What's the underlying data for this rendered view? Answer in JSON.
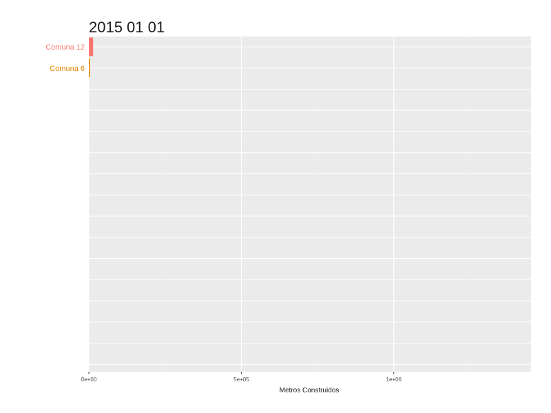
{
  "chart_data": {
    "type": "bar",
    "orientation": "horizontal",
    "title": "2015 01 01",
    "xlabel": "Metros Construidos",
    "ylabel": "",
    "xlim": [
      0,
      1450000
    ],
    "xticks": [
      0,
      500000,
      1000000
    ],
    "xtick_labels": [
      "0e+00",
      "5e+05",
      "1e+06"
    ],
    "categories": [
      "Comuna 12",
      "Comuna 6"
    ],
    "values": [
      14000,
      3500
    ],
    "colors": [
      "#f8766d",
      "#e58700"
    ],
    "grid": true,
    "legend": "none"
  }
}
